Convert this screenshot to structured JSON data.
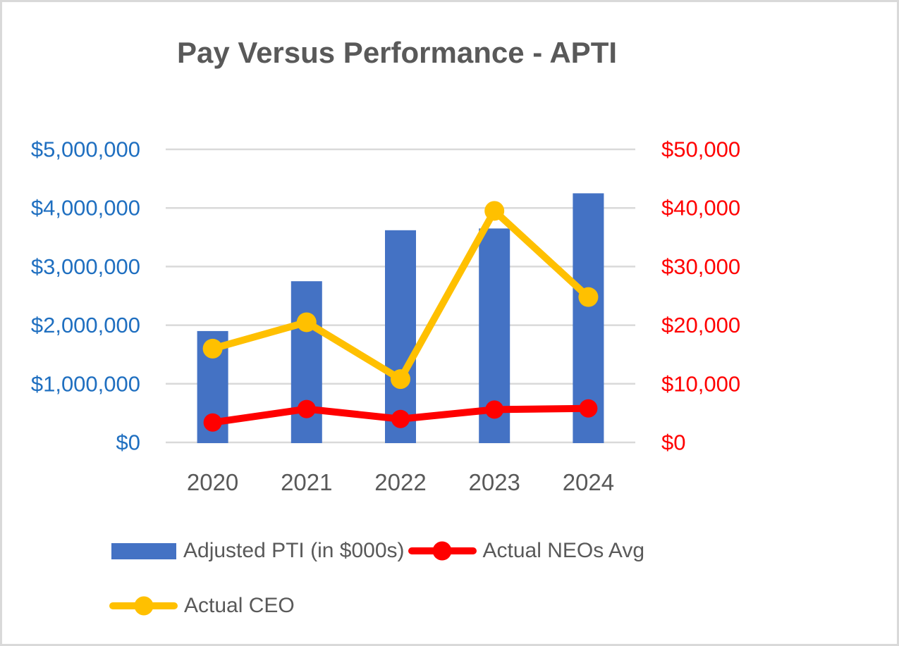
{
  "chart_data": {
    "type": "bar+line combo (dual axis)",
    "title": "Pay Versus Performance - APTI",
    "categories": [
      "2020",
      "2021",
      "2022",
      "2023",
      "2024"
    ],
    "grid": true,
    "legend_position": "bottom-left, two rows",
    "left_axis": {
      "min": 0,
      "max": 5000000,
      "color": "#1F6FC0",
      "ticks": [
        {
          "label": "$0",
          "value": 0
        },
        {
          "label": "$1,000,000",
          "value": 1000000
        },
        {
          "label": "$2,000,000",
          "value": 2000000
        },
        {
          "label": "$3,000,000",
          "value": 3000000
        },
        {
          "label": "$4,000,000",
          "value": 4000000
        },
        {
          "label": "$5,000,000",
          "value": 5000000
        }
      ]
    },
    "right_axis": {
      "min": 0,
      "max": 50000,
      "color": "#FF0000",
      "ticks": [
        {
          "label": "$0",
          "value": 0
        },
        {
          "label": "$10,000",
          "value": 10000
        },
        {
          "label": "$20,000",
          "value": 20000
        },
        {
          "label": "$30,000",
          "value": 30000
        },
        {
          "label": "$40,000",
          "value": 40000
        },
        {
          "label": "$50,000",
          "value": 50000
        }
      ]
    },
    "series": [
      {
        "name": "Adjusted PTI (in $000s)",
        "type": "bar",
        "axis": "left",
        "color": "#4472C4",
        "values": [
          1900000,
          2750000,
          3620000,
          3650000,
          4250000
        ]
      },
      {
        "name": "Actual NEOs Avg",
        "type": "line",
        "axis": "right",
        "color": "#FF0000",
        "values": [
          3400,
          5700,
          4000,
          5600,
          5800
        ]
      },
      {
        "name": "Actual CEO",
        "type": "line",
        "axis": "right",
        "color": "#FFC000",
        "values": [
          16000,
          20500,
          10800,
          39500,
          24800
        ]
      }
    ]
  },
  "colors": {
    "title_gray": "#595959",
    "category_label_gray": "#595959",
    "legend_text_gray": "#595959",
    "gridline_gray": "#D9D9D9",
    "canvas_border_gray": "#D9D9D9",
    "background": "#FFFFFF"
  }
}
